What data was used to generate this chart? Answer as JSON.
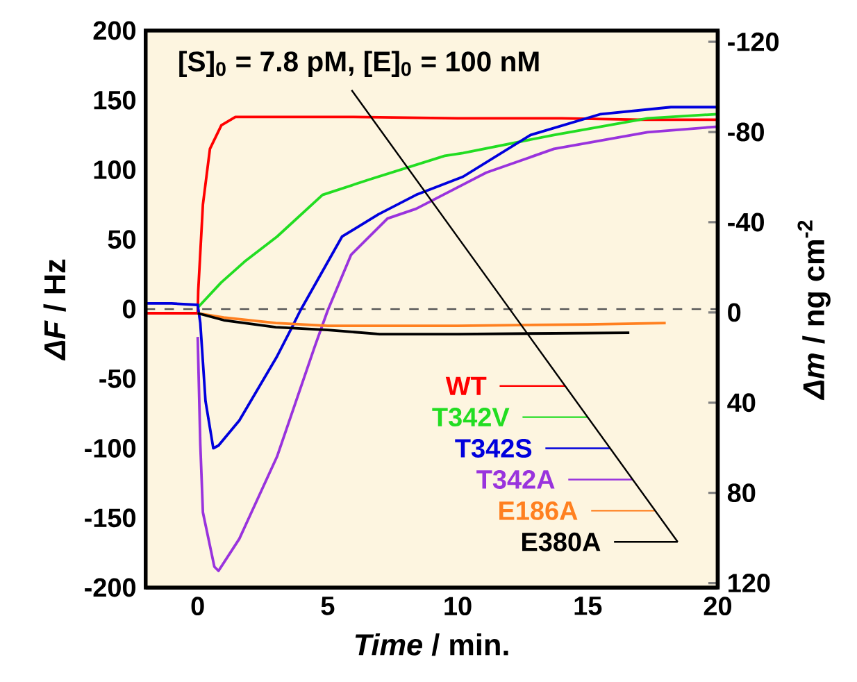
{
  "chart_data": {
    "type": "line",
    "xlabel": "*Time* / min.",
    "ylabel": "*ΔF* / Hz",
    "y2label": "*Δm* / ng cm$^{-2}$",
    "annotations": [
      "[S]$_{0}$ = 7.8 pM, [E]$_{0}$ = 100 nM"
    ],
    "xlim": [
      -2,
      20
    ],
    "xticks": [
      0,
      5,
      10,
      15,
      20
    ],
    "ylim": [
      -200,
      200
    ],
    "yticks": [
      -200,
      -150,
      -100,
      -50,
      0,
      50,
      100,
      150,
      200
    ],
    "y2lim": [
      122,
      -125
    ],
    "y2ticks": [
      -120,
      -80,
      -40,
      0,
      40,
      80,
      120
    ],
    "ref_lines": [
      {
        "axis": "y",
        "value": 0,
        "line_style": "dashed",
        "color": "#555555"
      }
    ],
    "legend": "bottom right",
    "series": [
      {
        "name": "WT",
        "color": "#ff0000",
        "x": [
          -2,
          -1,
          0,
          0.02,
          0.2,
          0.47,
          0.91,
          1.45,
          3,
          6,
          10,
          14,
          17,
          20
        ],
        "values": [
          -3,
          -3,
          -3,
          13,
          75,
          115,
          132,
          138,
          138,
          138,
          137,
          137,
          136,
          136
        ]
      },
      {
        "name": "T342V",
        "color": "#22dd22",
        "x": [
          0,
          0.9,
          1.8,
          3.05,
          4.8,
          6.6,
          9.5,
          10.2,
          13.7,
          17.3,
          20
        ],
        "values": [
          1,
          19,
          34,
          52,
          82,
          93,
          110,
          112,
          125,
          137,
          140
        ]
      },
      {
        "name": "T342S",
        "color": "#0000dd",
        "x": [
          -2,
          -1,
          0,
          0.1,
          0.3,
          0.6,
          0.8,
          1.6,
          3.05,
          3.6,
          3.95,
          5.55,
          6.95,
          8.4,
          10.2,
          12.8,
          15.5,
          18.2,
          20
        ],
        "values": [
          4,
          4,
          3,
          -10,
          -66,
          -100,
          -98,
          -80,
          -34,
          -14,
          -1,
          52,
          68,
          82,
          95,
          125,
          140,
          145,
          145
        ]
      },
      {
        "name": "T342A",
        "color": "#9933dd",
        "x": [
          0,
          0.1,
          0.2,
          0.64,
          0.8,
          1.6,
          3.05,
          4.5,
          5.0,
          5.9,
          7.3,
          8.4,
          11.1,
          13.7,
          17.3,
          20
        ],
        "values": [
          -20,
          -97,
          -146,
          -185,
          -188,
          -165,
          -106,
          -27,
          -1,
          39,
          65,
          72,
          98,
          115,
          127,
          131
        ]
      },
      {
        "name": "E186A",
        "color": "#ff8020",
        "x": [
          0,
          1,
          3,
          5,
          10,
          15,
          18
        ],
        "values": [
          -3,
          -6,
          -10,
          -12,
          -12,
          -11,
          -10
        ]
      },
      {
        "name": "E380A",
        "color": "#000000",
        "x": [
          0,
          1,
          3,
          5,
          7,
          10,
          16.6
        ],
        "values": [
          -3,
          -8,
          -13,
          -15,
          -18,
          -18,
          -17
        ]
      }
    ]
  }
}
